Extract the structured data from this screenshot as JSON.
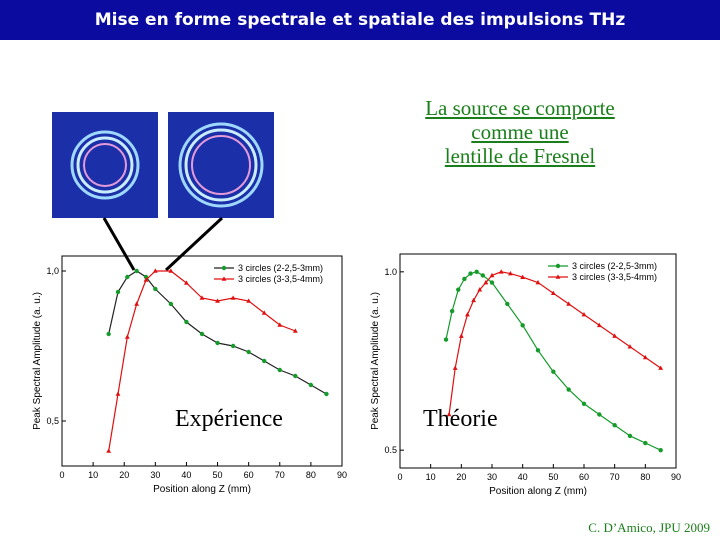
{
  "slide": {
    "title": "Mise en forme spectrale et spatiale des impulsions THz",
    "note_lines": [
      "La source se comporte",
      "comme une",
      "lentille de Fresnel"
    ],
    "caption_experiment": "Expérience",
    "caption_theory": "Théorie",
    "credit": "C. D’Amico, JPU 2009"
  },
  "colors": {
    "title_bg": "#0b0b9f",
    "note": "#1a7f1a",
    "series_black": "#222222",
    "series_red": "#e01010",
    "marker_green": "#159b2a",
    "ring_bg": "#1a2fa8"
  },
  "chart_data": [
    {
      "type": "line",
      "xlabel": "Position along Z (mm)",
      "ylabel": "Peak Spectral Amplitude (a. u.)",
      "xlim": [
        0,
        90
      ],
      "ylim": [
        0.35,
        1.05
      ],
      "x_ticks": [
        "0",
        "10",
        "20",
        "30",
        "40",
        "50",
        "60",
        "70",
        "80",
        "90"
      ],
      "y_ticks": [
        {
          "value": 0.5,
          "label": "0,5"
        },
        {
          "value": 1.0,
          "label": "1,0"
        }
      ],
      "legend_position": "top-right",
      "series": [
        {
          "name": "3 circles (2-2,5-3mm)",
          "line_color": "#222222",
          "marker_color": "#159b2a",
          "x": [
            15,
            18,
            21,
            24,
            27,
            30,
            35,
            40,
            45,
            50,
            55,
            60,
            65,
            70,
            75,
            80,
            85
          ],
          "y": [
            0.79,
            0.93,
            0.98,
            1.0,
            0.98,
            0.94,
            0.89,
            0.83,
            0.79,
            0.76,
            0.75,
            0.73,
            0.7,
            0.67,
            0.65,
            0.62,
            0.59
          ]
        },
        {
          "name": "3 circles (3-3,5-4mm)",
          "line_color": "#e01010",
          "marker_color": "#e01010",
          "x": [
            15,
            18,
            21,
            24,
            27,
            30,
            35,
            40,
            45,
            50,
            55,
            60,
            65,
            70,
            75
          ],
          "y": [
            0.4,
            0.59,
            0.78,
            0.89,
            0.97,
            1.0,
            1.0,
            0.96,
            0.91,
            0.9,
            0.91,
            0.9,
            0.86,
            0.82,
            0.8
          ]
        }
      ]
    },
    {
      "type": "line",
      "xlabel": "Position along Z (mm)",
      "ylabel": "Peak Spectral Amplitude (a. u.)",
      "xlim": [
        0,
        90
      ],
      "ylim": [
        0.45,
        1.05
      ],
      "x_ticks": [
        "0",
        "10",
        "20",
        "30",
        "40",
        "50",
        "60",
        "70",
        "80",
        "90"
      ],
      "y_ticks": [
        {
          "value": 0.5,
          "label": "0.5"
        },
        {
          "value": 1.0,
          "label": "1.0"
        }
      ],
      "legend_position": "top-right",
      "series": [
        {
          "name": "3 circles (2-2,5-3mm)",
          "line_color": "#159b2a",
          "marker_color": "#159b2a",
          "x": [
            15,
            17,
            19,
            21,
            23,
            25,
            27,
            30,
            35,
            40,
            45,
            50,
            55,
            60,
            65,
            70,
            75,
            80,
            85
          ],
          "y": [
            0.81,
            0.89,
            0.95,
            0.98,
            0.995,
            1.0,
            0.99,
            0.97,
            0.91,
            0.85,
            0.78,
            0.72,
            0.67,
            0.63,
            0.6,
            0.57,
            0.54,
            0.52,
            0.5
          ]
        },
        {
          "name": "3 circles (3-3,5-4mm)",
          "line_color": "#e01010",
          "marker_color": "#e01010",
          "x": [
            16,
            18,
            20,
            22,
            24,
            26,
            28,
            30,
            33,
            36,
            40,
            45,
            50,
            55,
            60,
            65,
            70,
            75,
            80,
            85
          ],
          "y": [
            0.6,
            0.73,
            0.82,
            0.88,
            0.92,
            0.95,
            0.97,
            0.99,
            1.0,
            0.995,
            0.985,
            0.97,
            0.94,
            0.91,
            0.88,
            0.85,
            0.82,
            0.79,
            0.76,
            0.73
          ]
        }
      ]
    }
  ]
}
